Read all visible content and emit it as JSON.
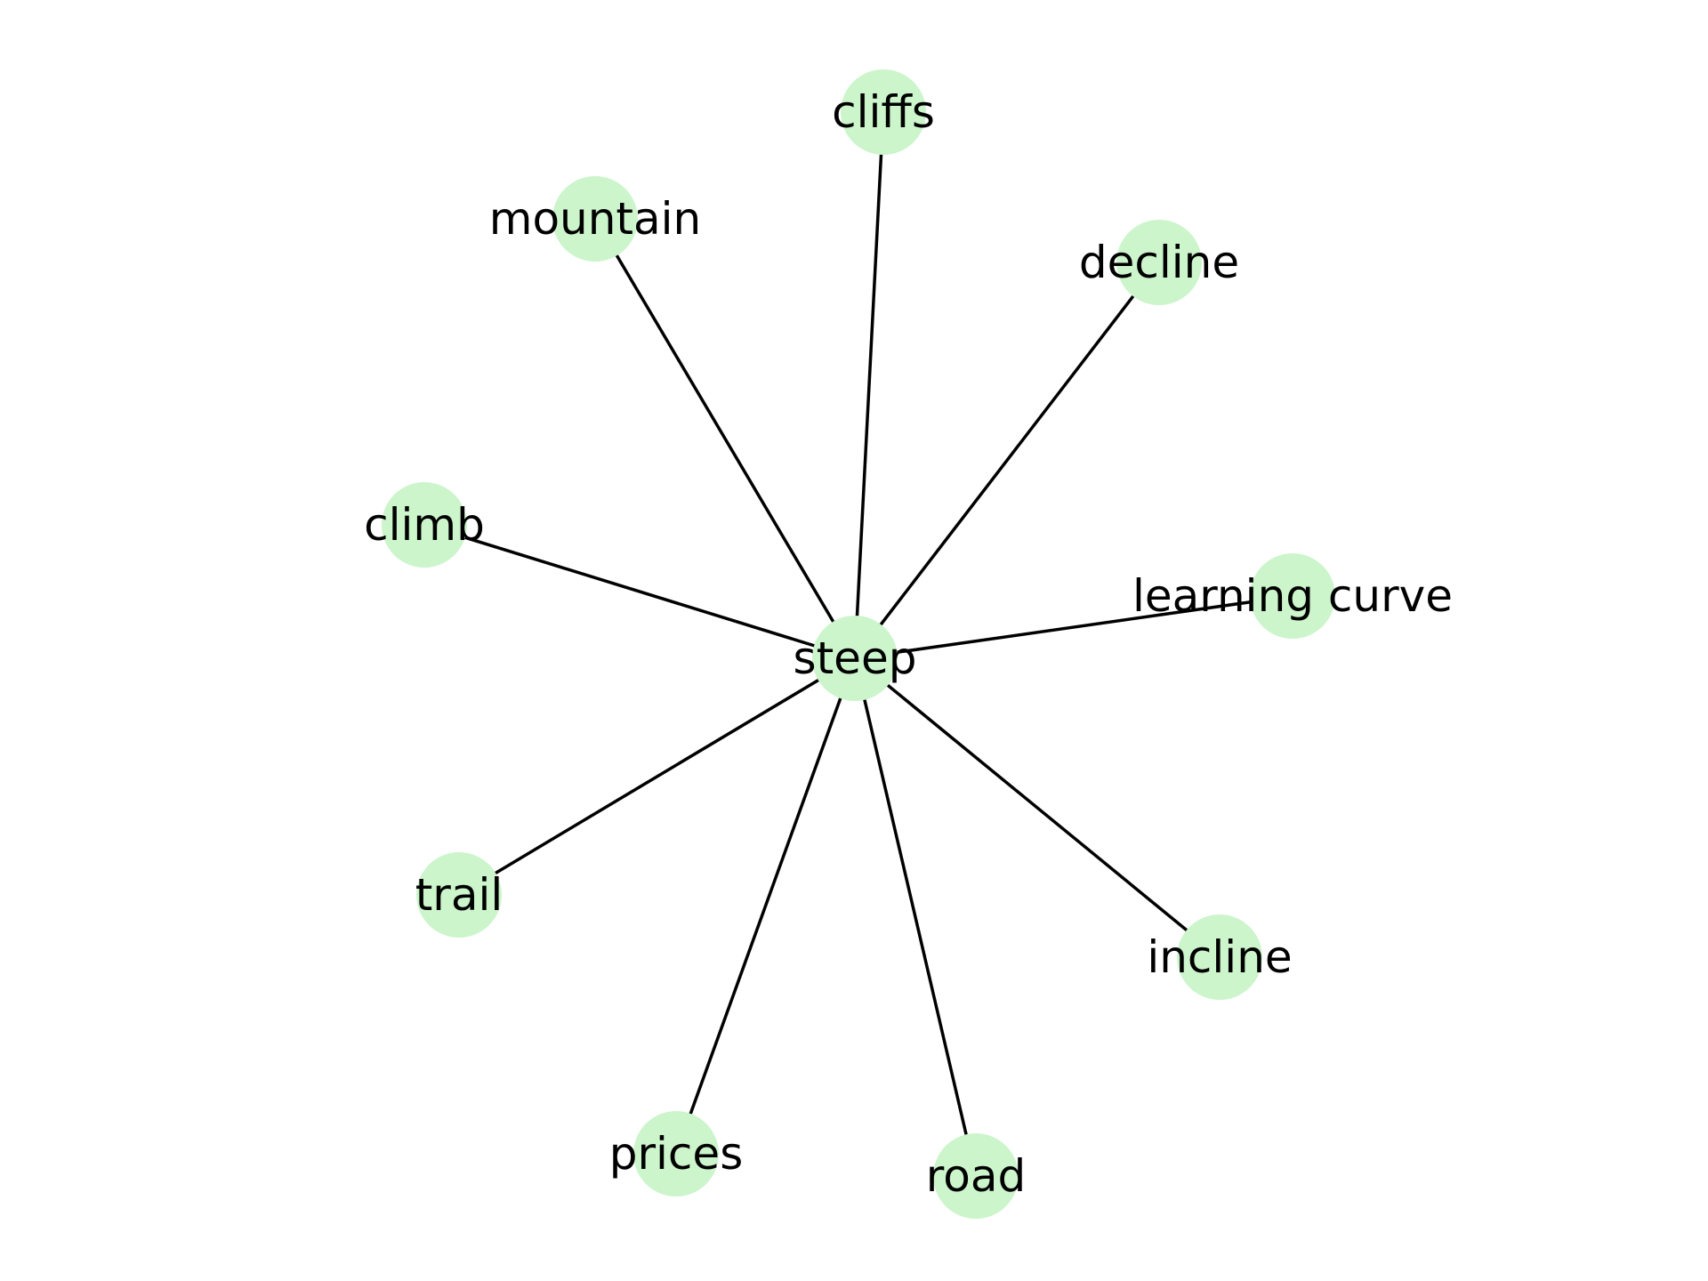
{
  "diagram": {
    "type": "network",
    "center": "steep",
    "nodes": [
      {
        "id": "steep",
        "label": "steep"
      },
      {
        "id": "cliffs",
        "label": "cliffs"
      },
      {
        "id": "mountain",
        "label": "mountain"
      },
      {
        "id": "decline",
        "label": "decline"
      },
      {
        "id": "climb",
        "label": "climb"
      },
      {
        "id": "learning-curve",
        "label": "learning curve"
      },
      {
        "id": "trail",
        "label": "trail"
      },
      {
        "id": "incline",
        "label": "incline"
      },
      {
        "id": "prices",
        "label": "prices"
      },
      {
        "id": "road",
        "label": "road"
      }
    ],
    "edges": [
      [
        "steep",
        "cliffs"
      ],
      [
        "steep",
        "mountain"
      ],
      [
        "steep",
        "decline"
      ],
      [
        "steep",
        "climb"
      ],
      [
        "steep",
        "learning-curve"
      ],
      [
        "steep",
        "trail"
      ],
      [
        "steep",
        "incline"
      ],
      [
        "steep",
        "prices"
      ],
      [
        "steep",
        "road"
      ]
    ],
    "colors": {
      "node_fill": "#ccf5cc",
      "edge": "#000000",
      "label": "#000000"
    }
  }
}
